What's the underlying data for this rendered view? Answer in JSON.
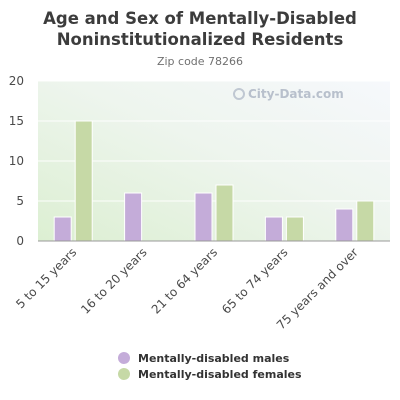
{
  "chart_data": {
    "type": "bar",
    "title": "Age and Sex of Mentally-Disabled Noninstitutionalized Residents",
    "subtitle": "Zip code 78266",
    "categories": [
      "5 to 15 years",
      "16 to 20 years",
      "21 to 64 years",
      "65 to 74 years",
      "75 years and over"
    ],
    "series": [
      {
        "name": "Mentally-disabled males",
        "color": "#c4acd9",
        "values": [
          3,
          6,
          6,
          3,
          4
        ]
      },
      {
        "name": "Mentally-disabled females",
        "color": "#c6d9a6",
        "values": [
          15,
          0,
          7,
          3,
          5
        ]
      }
    ],
    "ylim": [
      0,
      20
    ],
    "yticks": [
      0,
      5,
      10,
      15,
      20
    ],
    "grid": true,
    "legend_position": "bottom",
    "watermark": "City-Data.com"
  }
}
